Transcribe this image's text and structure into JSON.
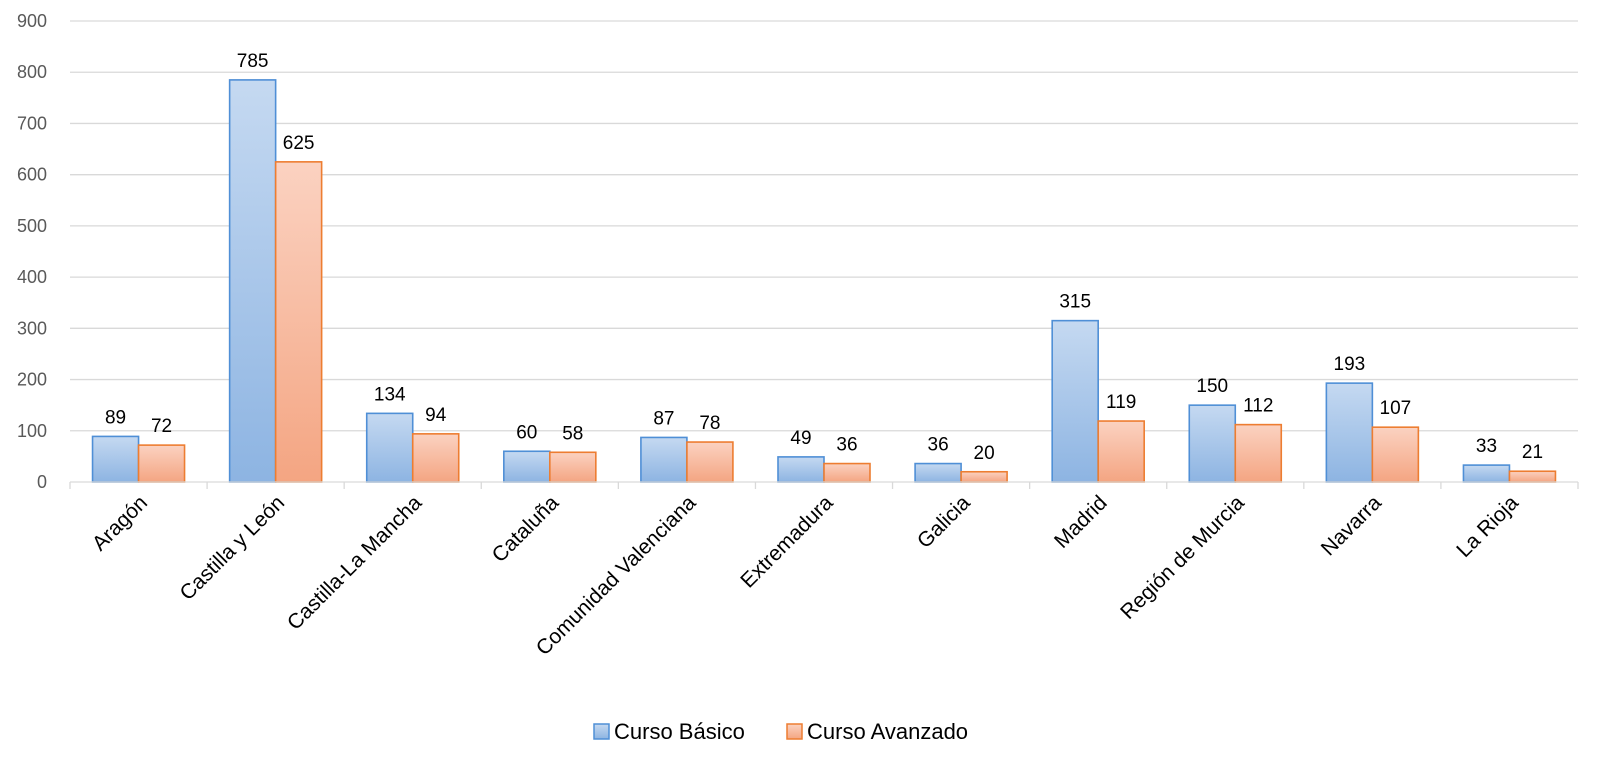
{
  "chart_data": {
    "type": "bar",
    "title": "",
    "xlabel": "",
    "ylabel": "",
    "ylim": [
      0,
      900
    ],
    "yticks": [
      0,
      100,
      200,
      300,
      400,
      500,
      600,
      700,
      800,
      900
    ],
    "grid": true,
    "legend_position": "bottom",
    "categories": [
      "Aragón",
      "Castilla y León",
      "Castilla-La Mancha",
      "Cataluña",
      "Comunidad Valenciana",
      "Extremadura",
      "Galicia",
      "Madrid",
      "Región de Murcia",
      "Navarra",
      "La Rioja"
    ],
    "series": [
      {
        "name": "Curso Básico",
        "values": [
          89,
          785,
          134,
          60,
          87,
          49,
          36,
          315,
          150,
          193,
          33
        ],
        "color_top": "#c5d9f1",
        "color_bottom": "#8db4e2",
        "stroke": "#4f8fd6"
      },
      {
        "name": "Curso Avanzado",
        "values": [
          72,
          625,
          94,
          58,
          78,
          36,
          20,
          119,
          112,
          107,
          21
        ],
        "color_top": "#fbd2c1",
        "color_bottom": "#f4a582",
        "stroke": "#ed7d31"
      }
    ]
  }
}
